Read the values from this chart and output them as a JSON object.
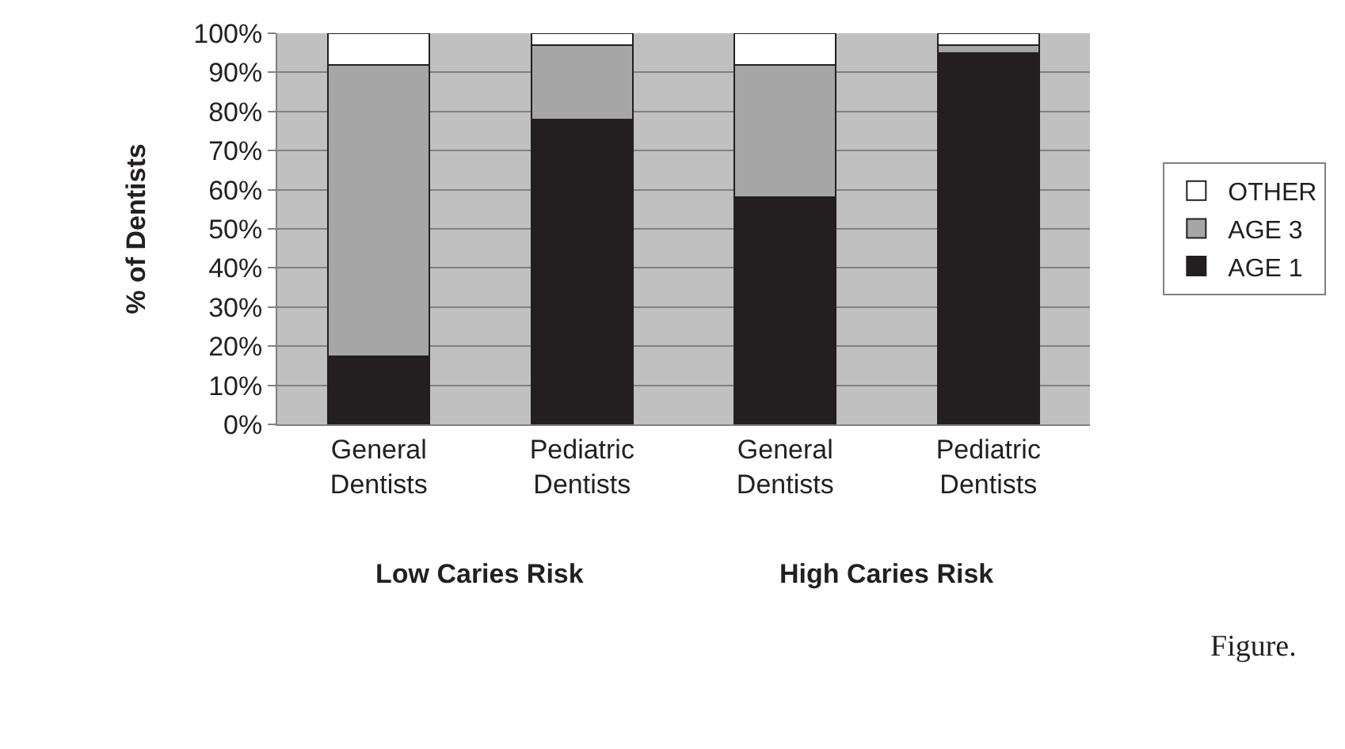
{
  "chart_data": {
    "type": "bar",
    "stacked": true,
    "categories": [
      "General\nDentists",
      "Pediatric\nDentists",
      "General\nDentists",
      "Pediatric\nDentists"
    ],
    "ylabel": "% of Dentists",
    "series": [
      {
        "name": "AGE 1",
        "color": "#231f20",
        "values": [
          17.5,
          78,
          58,
          95
        ]
      },
      {
        "name": "AGE 3",
        "color": "#a6a6a6",
        "values": [
          74.5,
          19,
          34,
          2
        ]
      },
      {
        "name": "OTHER",
        "color": "#ffffff",
        "values": [
          8,
          3,
          8,
          3
        ]
      }
    ],
    "ylim": [
      0,
      100
    ],
    "yticks": [
      {
        "value": 0,
        "label": "0%"
      },
      {
        "value": 10,
        "label": "10%"
      },
      {
        "value": 20,
        "label": "20%"
      },
      {
        "value": 30,
        "label": "30%"
      },
      {
        "value": 40,
        "label": "40%"
      },
      {
        "value": 50,
        "label": "50%"
      },
      {
        "value": 60,
        "label": "60%"
      },
      {
        "value": 70,
        "label": "70%"
      },
      {
        "value": 80,
        "label": "80%"
      },
      {
        "value": 90,
        "label": "90%"
      },
      {
        "value": 100,
        "label": "100%"
      }
    ],
    "grid": "y",
    "legend": "right",
    "annotations": [
      "Low Caries Risk",
      "High Caries Risk",
      "Figure."
    ]
  }
}
